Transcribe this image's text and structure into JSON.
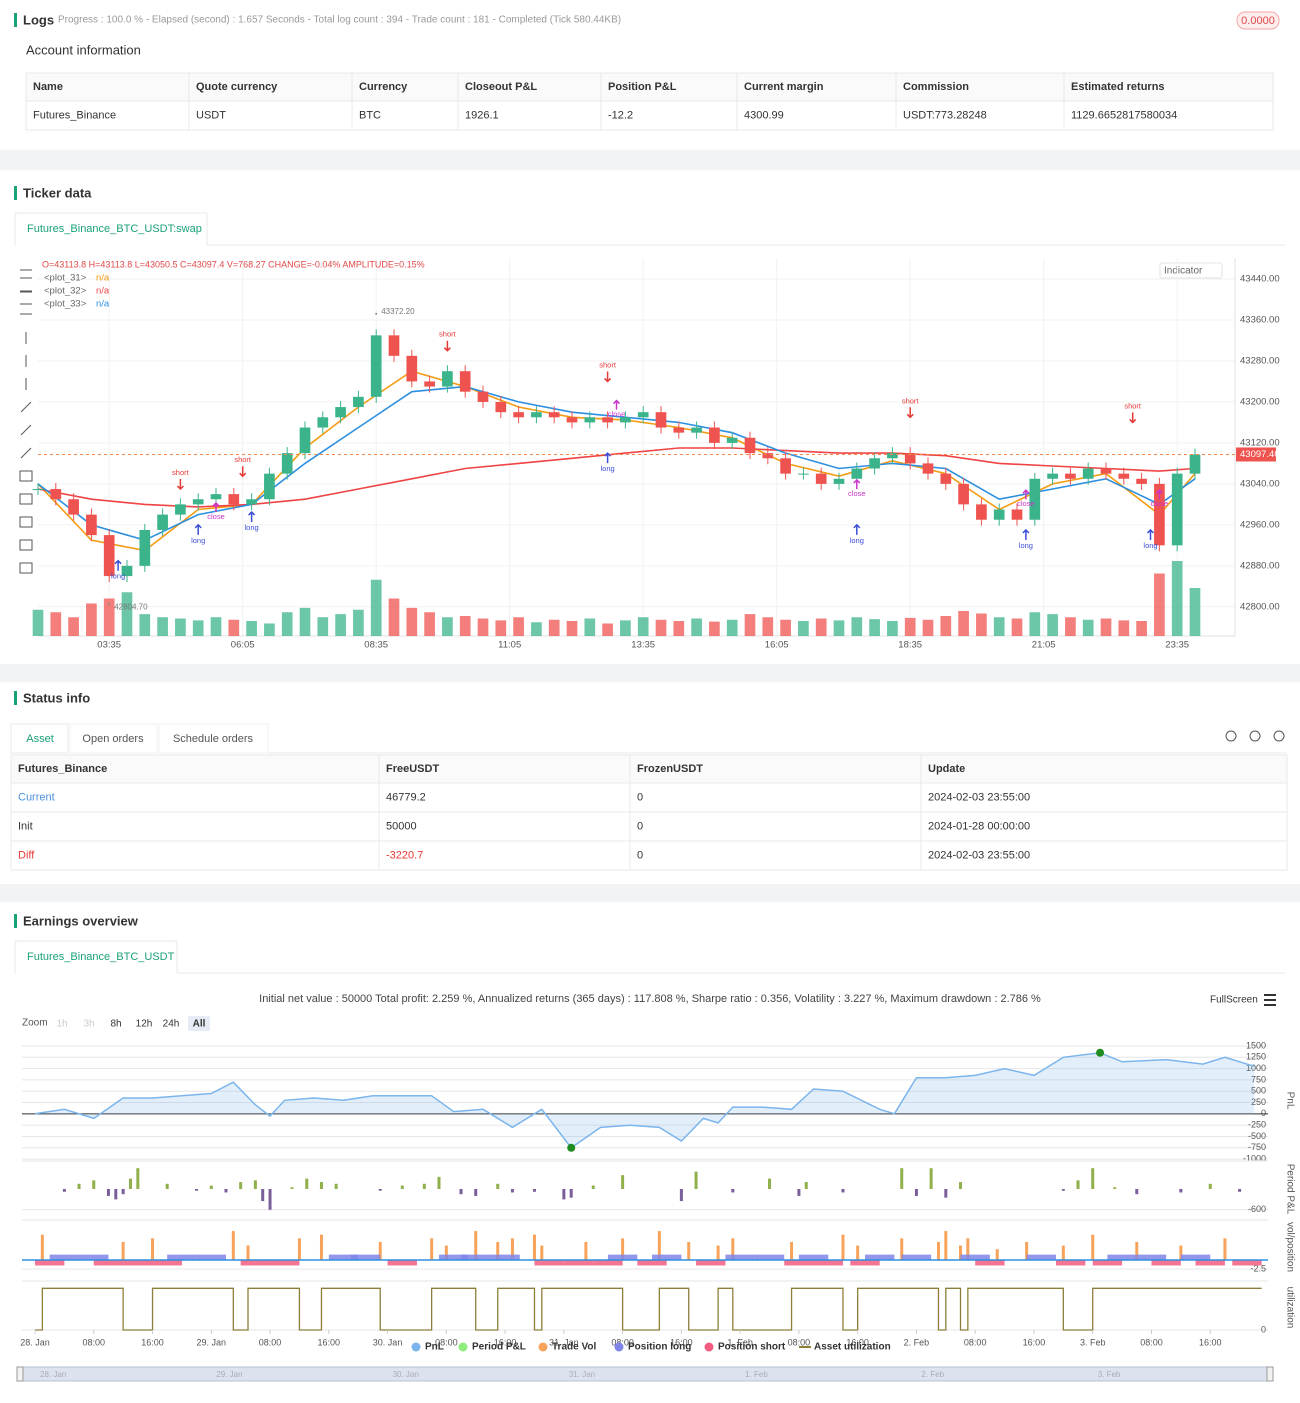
{
  "logs": {
    "title": "Logs",
    "progress": "Progress : 100.0 % - Elapsed (second) : 1.657 Seconds - Total log count : 394 - Trade count : 181 - Completed (Tick 580.44KB)",
    "badge": "0.0000"
  },
  "account": {
    "title": "Account information",
    "columns": [
      "Name",
      "Quote currency",
      "Currency",
      "Closeout P&L",
      "Position P&L",
      "Current margin",
      "Commission",
      "Estimated returns"
    ],
    "rows": [
      [
        "Futures_Binance",
        "USDT",
        "BTC",
        "1926.1",
        "-12.2",
        "4300.99",
        "USDT:773.28248",
        "1129.6652817580034"
      ]
    ]
  },
  "ticker": {
    "title": "Ticker data",
    "tab": "Futures_Binance_BTC_USDT:swap",
    "indicator": "Indicator"
  },
  "status": {
    "title": "Status info",
    "tabs": [
      "Asset",
      "Open orders",
      "Schedule orders"
    ],
    "columns": [
      "Futures_Binance",
      "FreeUSDT",
      "FrozenUSDT",
      "Update"
    ],
    "rows": [
      [
        "Current",
        "46779.2",
        "0",
        "2024-02-03 23:55:00"
      ],
      [
        "Init",
        "50000",
        "0",
        "2024-01-28 00:00:00"
      ],
      [
        "Diff",
        "-3220.7",
        "0",
        "2024-02-03 23:55:00"
      ]
    ]
  },
  "earnings": {
    "title": "Earnings overview",
    "tab": "Futures_Binance_BTC_USDT",
    "summary": "Initial net value : 50000 Total profit: 2.259 %, Annualized returns (365 days) : 117.808 %, Sharpe ratio : 0.356, Volatility : 3.227 %, Maximum drawdown : 2.786 %",
    "zoom": "Zoom",
    "zoom_buttons": [
      "1h",
      "3h",
      "8h",
      "12h",
      "24h",
      "All"
    ],
    "fullscreen": "FullScreen"
  },
  "chart_data": [
    {
      "type": "candlestick",
      "ohlc": "O=43113.8 H=43113.8 L=43050.5 C=43097.4 V=768.27 CHANGE=-0.04% AMPLITUDE=0.15%",
      "up_color": "#3bb38b",
      "down_color": "#ef5350",
      "xlim": [
        0,
        65
      ],
      "ylim": [
        42743,
        43481
      ],
      "xticks": [
        {
          "value": 4,
          "label": "03:35"
        },
        {
          "value": 11.5,
          "label": "06:05"
        },
        {
          "value": 19,
          "label": "08:35"
        },
        {
          "value": 26.5,
          "label": "11:05"
        },
        {
          "value": 34,
          "label": "13:35"
        },
        {
          "value": 41.5,
          "label": "16:05"
        },
        {
          "value": 49,
          "label": "18:35"
        },
        {
          "value": 56.5,
          "label": "21:05"
        },
        {
          "value": 64,
          "label": "23:35"
        }
      ],
      "yticks": [
        {
          "value": 42800,
          "label": "42800.00"
        },
        {
          "value": 42880,
          "label": "42880.00"
        },
        {
          "value": 42960,
          "label": "42960.00"
        },
        {
          "value": 43040,
          "label": "43040.00"
        },
        {
          "value": 43120,
          "label": "43120.00"
        },
        {
          "value": 43200,
          "label": "43200.00"
        },
        {
          "value": 43280,
          "label": "43280.00"
        },
        {
          "value": 43360,
          "label": "43360.00"
        },
        {
          "value": 43440,
          "label": "43440.00"
        }
      ],
      "close": [
        43030,
        43010,
        42980,
        42940,
        42860,
        42880,
        42950,
        42980,
        43000,
        43010,
        43020,
        43000,
        43010,
        43060,
        43100,
        43150,
        43170,
        43190,
        43210,
        43330,
        43290,
        43240,
        43230,
        43260,
        43220,
        43200,
        43180,
        43170,
        43180,
        43170,
        43160,
        43170,
        43160,
        43170,
        43180,
        43150,
        43140,
        43150,
        43120,
        43130,
        43100,
        43090,
        43060,
        43060,
        43040,
        43050,
        43070,
        43090,
        43100,
        43080,
        43060,
        43040,
        43000,
        42970,
        42990,
        42970,
        43050,
        43060,
        43050,
        43070,
        43060,
        43050,
        43040,
        42920,
        43060,
        43097.4
      ],
      "volume": [
        420,
        380,
        300,
        520,
        600,
        700,
        350,
        300,
        280,
        250,
        300,
        260,
        240,
        200,
        380,
        450,
        300,
        350,
        420,
        900,
        600,
        450,
        380,
        300,
        320,
        280,
        250,
        300,
        220,
        260,
        240,
        280,
        200,
        250,
        300,
        260,
        240,
        280,
        230,
        260,
        350,
        300,
        260,
        240,
        280,
        250,
        300,
        270,
        240,
        290,
        260,
        320,
        400,
        360,
        300,
        280,
        380,
        350,
        300,
        260,
        280,
        250,
        240,
        1000,
        1200,
        768.27
      ],
      "line_x": [
        0,
        3,
        6,
        9,
        12,
        15,
        18,
        21,
        24,
        27,
        30,
        33,
        36,
        39,
        42,
        45,
        48,
        51,
        54,
        57,
        60,
        63,
        65
      ],
      "series": [
        {
          "name": "<plot_31>",
          "status": "n/a",
          "color": "#f39c12",
          "values": [
            43040,
            42930,
            42910,
            42990,
            43000,
            43110,
            43190,
            43260,
            43230,
            43190,
            43170,
            43165,
            43150,
            43130,
            43080,
            43055,
            43085,
            43060,
            42990,
            43040,
            43060,
            42980,
            43060
          ]
        },
        {
          "name": "<plot_32>",
          "status": "n/a",
          "color": "#ef4444",
          "values": [
            43030,
            43010,
            43000,
            42995,
            43000,
            43010,
            43030,
            43050,
            43070,
            43080,
            43090,
            43100,
            43110,
            43110,
            43105,
            43100,
            43100,
            43095,
            43080,
            43075,
            43070,
            43065,
            43070
          ]
        },
        {
          "name": "<plot_33>",
          "status": "n/a",
          "color": "#2d8fe0",
          "values": [
            43040,
            42960,
            42930,
            42980,
            43000,
            43080,
            43150,
            43220,
            43230,
            43200,
            43180,
            43170,
            43160,
            43140,
            43100,
            43070,
            43080,
            43070,
            43010,
            43030,
            43050,
            43000,
            43050
          ]
        }
      ],
      "last_price": {
        "value": 43097.4,
        "label": "43097.40"
      },
      "high": {
        "x": 19,
        "value": 43372.2,
        "label": "43372.20"
      },
      "low": {
        "x": 4,
        "value": 42804.7,
        "label": "42804.70"
      },
      "signal_colors": {
        "long": "#3a4fd8",
        "short": "#e53935",
        "close": "#cc33cc"
      },
      "signals": [
        {
          "x": 4.5,
          "price": 42890,
          "text": "long"
        },
        {
          "x": 8,
          "price": 43030,
          "text": "short"
        },
        {
          "x": 9,
          "price": 42960,
          "text": "long"
        },
        {
          "x": 10,
          "price": 42985,
          "text": "close"
        },
        {
          "x": 11.5,
          "price": 43055,
          "text": "short"
        },
        {
          "x": 12,
          "price": 42985,
          "text": "long"
        },
        {
          "x": 23,
          "price": 43300,
          "text": "short"
        },
        {
          "x": 32,
          "price": 43240,
          "text": "short"
        },
        {
          "x": 32.5,
          "price": 43185,
          "text": "close"
        },
        {
          "x": 32,
          "price": 43100,
          "text": "long"
        },
        {
          "x": 49,
          "price": 43170,
          "text": "short"
        },
        {
          "x": 46,
          "price": 43030,
          "text": "close"
        },
        {
          "x": 46,
          "price": 42960,
          "text": "long"
        },
        {
          "x": 55.5,
          "price": 43010,
          "text": "close"
        },
        {
          "x": 55.5,
          "price": 42950,
          "text": "long"
        },
        {
          "x": 61.5,
          "price": 43160,
          "text": "short"
        },
        {
          "x": 63,
          "price": 43010,
          "text": "close"
        },
        {
          "x": 62.5,
          "price": 42950,
          "text": "long"
        }
      ]
    },
    {
      "type": "area",
      "ylabel": "PnL",
      "xlim": [
        0,
        168
      ],
      "ylim": [
        -1020,
        1610
      ],
      "yticks": [
        1500,
        1250,
        1000,
        750,
        500,
        250,
        0,
        -250,
        -500,
        -750,
        -1000
      ],
      "series": [
        {
          "name": "PnL",
          "color": "#7cb5ec",
          "x": [
            0,
            4,
            8,
            12,
            16,
            20,
            24,
            27,
            30,
            32,
            34,
            38,
            42,
            46,
            50,
            54,
            57,
            61,
            65,
            69,
            73,
            77,
            81,
            85,
            88,
            91,
            93,
            95,
            99,
            103,
            106,
            110,
            115,
            117,
            120,
            124,
            128,
            132,
            136,
            140,
            145,
            148,
            154,
            159,
            162,
            166
          ],
          "values": [
            0,
            100,
            -100,
            350,
            350,
            400,
            450,
            700,
            200,
            -50,
            300,
            350,
            300,
            400,
            400,
            400,
            50,
            100,
            -300,
            100,
            -750,
            -300,
            -250,
            -300,
            -600,
            -100,
            -200,
            150,
            150,
            100,
            550,
            500,
            100,
            0,
            800,
            800,
            850,
            1000,
            850,
            1250,
            1350,
            1150,
            1200,
            1100,
            1250,
            1050
          ]
        }
      ]
    },
    {
      "type": "bar",
      "ylabel": "Period P&L",
      "xlim": [
        0,
        168
      ],
      "ylim": [
        -750,
        750
      ],
      "yticks": [
        -600
      ],
      "up_color": "#8fb04b",
      "down_color": "#7a5f9a",
      "series": [
        {
          "name": "Period P&L",
          "color": "#90ed7d",
          "x": [
            4,
            6,
            8,
            10,
            11,
            12,
            13,
            14,
            18,
            22,
            24,
            26,
            28,
            30,
            31,
            32,
            35,
            37,
            39,
            41,
            47,
            50,
            53,
            55,
            58,
            60,
            63,
            65,
            68,
            72,
            73,
            76,
            80,
            88,
            90,
            95,
            100,
            104,
            105,
            110,
            118,
            120,
            122,
            124,
            126,
            140,
            142,
            144,
            147,
            150,
            156,
            160,
            164
          ],
          "values": [
            -80,
            150,
            250,
            -200,
            -300,
            -150,
            300,
            600,
            150,
            -50,
            100,
            -100,
            200,
            250,
            -350,
            -600,
            50,
            300,
            200,
            150,
            -50,
            100,
            150,
            350,
            -150,
            -200,
            150,
            -100,
            -80,
            -300,
            -250,
            100,
            400,
            -350,
            500,
            -100,
            300,
            -200,
            200,
            -100,
            600,
            -200,
            600,
            -250,
            200,
            -50,
            250,
            600,
            50,
            -150,
            -100,
            150,
            -80
          ]
        }
      ]
    },
    {
      "type": "bar",
      "ylabel": "vol/position",
      "xlim": [
        0,
        168
      ],
      "ylim": [
        -3.3,
        10.5
      ],
      "yticks": [
        -2.5
      ],
      "series": [
        {
          "name": "Trade Vol",
          "color": "#f7a35c",
          "x": [
            1,
            12,
            16,
            27,
            29,
            36,
            39,
            47,
            54,
            56,
            60,
            63,
            65,
            68,
            69,
            75,
            80,
            85,
            89,
            93,
            95,
            103,
            110,
            112,
            118,
            123,
            124,
            126,
            127,
            131,
            135,
            140,
            144,
            150,
            156,
            162
          ],
          "values": [
            7,
            5,
            6,
            8,
            4,
            6,
            7,
            5,
            6,
            4,
            8,
            5,
            6,
            7,
            4,
            5,
            6,
            8,
            5,
            4,
            6,
            5,
            7,
            4,
            6,
            5,
            8,
            4,
            6,
            3,
            5,
            4,
            7,
            5,
            4,
            6
          ]
        },
        {
          "name": "Position long",
          "color": "#8085e9",
          "x": [
            4,
            8,
            20,
            24,
            42,
            45,
            57,
            60,
            64,
            80,
            86,
            96,
            100,
            106,
            115,
            120,
            128,
            137,
            148,
            152,
            158
          ],
          "values": [
            1.5,
            1.5,
            1.5,
            1.5,
            1.5,
            1.5,
            1.5,
            1.5,
            1.5,
            1.5,
            1.5,
            1.5,
            1.5,
            1.5,
            1.5,
            1.5,
            1.5,
            1.5,
            1.5,
            1.5,
            1.5
          ]
        },
        {
          "name": "Position short",
          "color": "#f15c80",
          "x": [
            2,
            10,
            14,
            18,
            30,
            34,
            50,
            70,
            74,
            78,
            84,
            92,
            104,
            108,
            113,
            130,
            141,
            146,
            154,
            160,
            165
          ],
          "values": [
            -1.5,
            -1.5,
            -1.5,
            -1.5,
            -1.5,
            -1.5,
            -1.5,
            -1.5,
            -1.5,
            -1.5,
            -1.5,
            -1.5,
            -1.5,
            -1.5,
            -1.5,
            -1.5,
            -1.5,
            -1.5,
            -1.5,
            -1.5,
            -1.5
          ]
        }
      ]
    },
    {
      "type": "step",
      "ylabel": "utilization",
      "xlim": [
        0,
        168
      ],
      "ylim": [
        0,
        1.08
      ],
      "yticks": [
        0
      ],
      "xticks": [
        {
          "value": 0,
          "label": "28. Jan"
        },
        {
          "value": 8,
          "label": "08:00"
        },
        {
          "value": 16,
          "label": "16:00"
        },
        {
          "value": 24,
          "label": "29. Jan"
        },
        {
          "value": 32,
          "label": "08:00"
        },
        {
          "value": 40,
          "label": "16:00"
        },
        {
          "value": 48,
          "label": "30. Jan"
        },
        {
          "value": 56,
          "label": "08:00"
        },
        {
          "value": 64,
          "label": "16:00"
        },
        {
          "value": 72,
          "label": "31. Jan"
        },
        {
          "value": 80,
          "label": "08:00"
        },
        {
          "value": 88,
          "label": "16:00"
        },
        {
          "value": 96,
          "label": "1. Feb"
        },
        {
          "value": 104,
          "label": "08:00"
        },
        {
          "value": 112,
          "label": "16:00"
        },
        {
          "value": 120,
          "label": "2. Feb"
        },
        {
          "value": 128,
          "label": "08:00"
        },
        {
          "value": 136,
          "label": "16:00"
        },
        {
          "value": 144,
          "label": "3. Feb"
        },
        {
          "value": 152,
          "label": "08:00"
        },
        {
          "value": 160,
          "label": "16:00"
        }
      ],
      "series": [
        {
          "name": "Asset utilization",
          "color": "#8d7f3a",
          "x": [
            0,
            1,
            12,
            16,
            27,
            29,
            36,
            39,
            47,
            54,
            60,
            63,
            68,
            69,
            80,
            85,
            89,
            93,
            95,
            103,
            110,
            112,
            123,
            124,
            126,
            127,
            140,
            144,
            167
          ],
          "values": [
            0,
            1,
            0,
            1,
            0,
            1,
            0,
            1,
            0,
            1,
            0,
            1,
            0,
            1,
            0,
            1,
            0,
            1,
            0,
            1,
            0,
            1,
            0,
            1,
            0,
            1,
            0,
            1,
            1
          ]
        }
      ]
    }
  ]
}
